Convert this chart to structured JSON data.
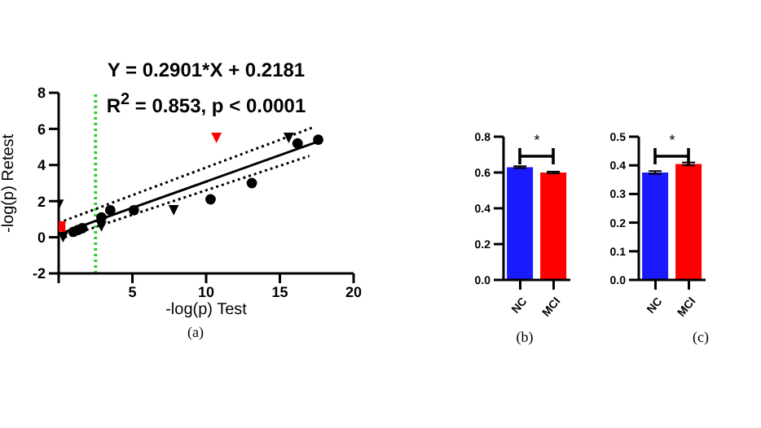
{
  "chart_data": [
    {
      "type": "scatter",
      "xlabel": "-log(p) Test",
      "ylabel": "-log(p) Retest",
      "xlim": [
        0,
        20
      ],
      "xticks": [
        {
          "value": 0,
          "label": null
        },
        5,
        10,
        15,
        20
      ],
      "ylim": [
        -2,
        8
      ],
      "yticks": [
        -2,
        0,
        2,
        4,
        6,
        8
      ],
      "annotations": [
        "Y = 0.2901*X + 0.2181",
        "R$^{2}$ = 0.853, p < 0.0001",
        "(a)"
      ],
      "ref_lines": [
        {
          "axis": "x",
          "value": 2.5,
          "color": "#33cc33",
          "line_style": "dotted"
        }
      ],
      "series": [
        {
          "type": "scatter",
          "marker": "circle",
          "color": "#000000",
          "x": [
            1.0,
            1.3,
            1.6,
            2.9,
            3.5,
            5.1,
            10.3,
            13.1,
            16.2,
            17.6
          ],
          "values": [
            0.3,
            0.4,
            0.5,
            1.1,
            1.5,
            1.5,
            2.1,
            3.0,
            5.2,
            5.4
          ]
        },
        {
          "type": "scatter",
          "marker": "triangle",
          "color": "#000000",
          "x": [
            0,
            0.3,
            2.9,
            7.8,
            15.6
          ],
          "values": [
            1.8,
            0.0,
            0.6,
            1.5,
            5.5
          ]
        },
        {
          "type": "scatter",
          "marker": "triangle",
          "color": "#ff0000",
          "x": [
            10.7
          ],
          "values": [
            5.5
          ]
        },
        {
          "type": "scatter",
          "marker": "square",
          "color": "#ff0000",
          "x": [
            0.1
          ],
          "values": [
            0.6
          ]
        },
        {
          "type": "line",
          "marker": "none",
          "line_style": "solid",
          "color": "#000000",
          "x": [
            0.1,
            17.6
          ],
          "values": [
            0.2,
            5.3
          ]
        },
        {
          "type": "line",
          "marker": "none",
          "line_style": "dotted",
          "color": "#000000",
          "x": [
            0,
            17.3
          ],
          "values": [
            0.8,
            6.1
          ]
        },
        {
          "type": "line",
          "marker": "none",
          "line_style": "dotted",
          "color": "#000000",
          "x": [
            0.4,
            17
          ],
          "values": [
            0.0,
            4.5
          ]
        }
      ]
    },
    {
      "type": "bar",
      "categories": [
        "NC",
        "MCI"
      ],
      "values": [
        0.63,
        0.6
      ],
      "errors": [
        0.005,
        0.005
      ],
      "colors": [
        "#1a1aff",
        "#ff0000"
      ],
      "ylim": [
        0,
        0.8
      ],
      "yticks": [
        {
          "value": 0,
          "label": "0.0"
        },
        0.2,
        0.4,
        0.6,
        0.8
      ],
      "annotations": [
        "*",
        "(b)"
      ]
    },
    {
      "type": "bar",
      "categories": [
        "NC",
        "MCI"
      ],
      "values": [
        0.375,
        0.405
      ],
      "errors": [
        0.005,
        0.005
      ],
      "colors": [
        "#1a1aff",
        "#ff0000"
      ],
      "ylim": [
        0,
        0.5
      ],
      "yticks": [
        {
          "value": 0,
          "label": "0.0"
        },
        0.1,
        0.2,
        0.3,
        0.4,
        0.5
      ],
      "annotations": [
        "*",
        "(c)"
      ]
    }
  ]
}
